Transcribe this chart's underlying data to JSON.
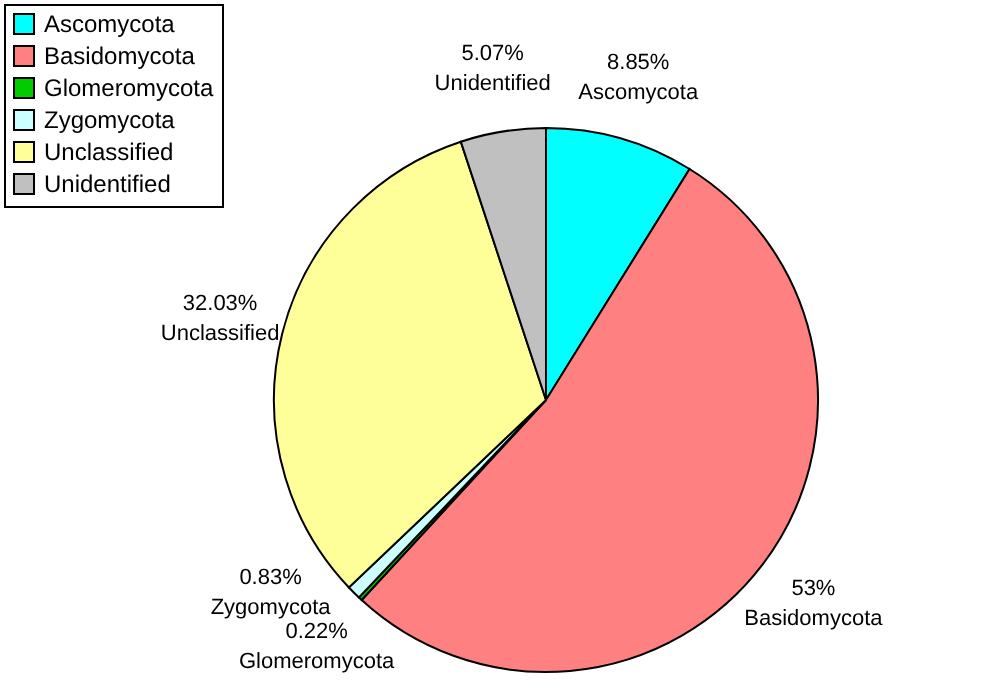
{
  "chart_data": {
    "type": "pie",
    "categories": [
      "Ascomycota",
      "Basidomycota",
      "Glomeromycota",
      "Zygomycota",
      "Unclassified",
      "Unidentified"
    ],
    "values": [
      8.85,
      53,
      0.22,
      0.83,
      32.03,
      5.07
    ],
    "colors": [
      "#00ffff",
      "#ff8080",
      "#00cc00",
      "#ccffff",
      "#ffff99",
      "#c0c0c0"
    ],
    "value_labels": [
      "8.85%",
      "53%",
      "0.22%",
      "0.83%",
      "32.03%",
      "5.07%"
    ],
    "legend": "top left"
  }
}
